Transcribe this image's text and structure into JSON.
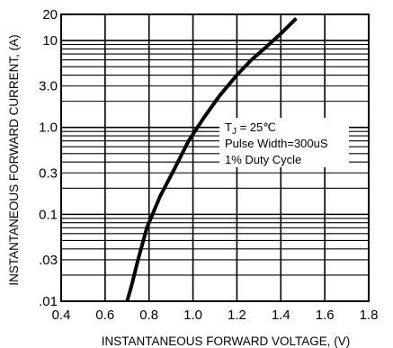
{
  "chart_data": {
    "type": "line",
    "xlabel": "INSTANTANEOUS FORWARD VOLTAGE, (V)",
    "ylabel": "INSTANTANEOUS FORWARD CURRENT, (A)",
    "xlim": [
      0.4,
      1.8
    ],
    "ylim": [
      0.01,
      20
    ],
    "yscale": "log",
    "grid": true,
    "x_ticks": [
      "0.4",
      "0.6",
      "0.8",
      "1.0",
      "1.2",
      "1.4",
      "1.6",
      "1.8"
    ],
    "x_tick_values": [
      0.4,
      0.6,
      0.8,
      1.0,
      1.2,
      1.4,
      1.6,
      1.8
    ],
    "y_ticks": [
      "20",
      "10",
      "3.0",
      "1.0",
      "0.3",
      "0.1",
      ".03",
      ".01"
    ],
    "y_tick_values": [
      20,
      10,
      3,
      1,
      0.3,
      0.1,
      0.03,
      0.01
    ],
    "series": [
      {
        "x": [
          0.7,
          0.72,
          0.75,
          0.79,
          0.85,
          0.92,
          0.98,
          1.05,
          1.12,
          1.2,
          1.26,
          1.33,
          1.4,
          1.47
        ],
        "y": [
          0.01,
          0.015,
          0.03,
          0.07,
          0.16,
          0.35,
          0.7,
          1.3,
          2.3,
          4.0,
          5.8,
          8.3,
          12,
          18
        ]
      }
    ],
    "annotations": {
      "tj_symbol": "T",
      "tj_subscript": "J",
      "tj_value": " = 25℃",
      "pulse": "Pulse Width=300uS",
      "duty": "1% Duty Cycle"
    }
  }
}
